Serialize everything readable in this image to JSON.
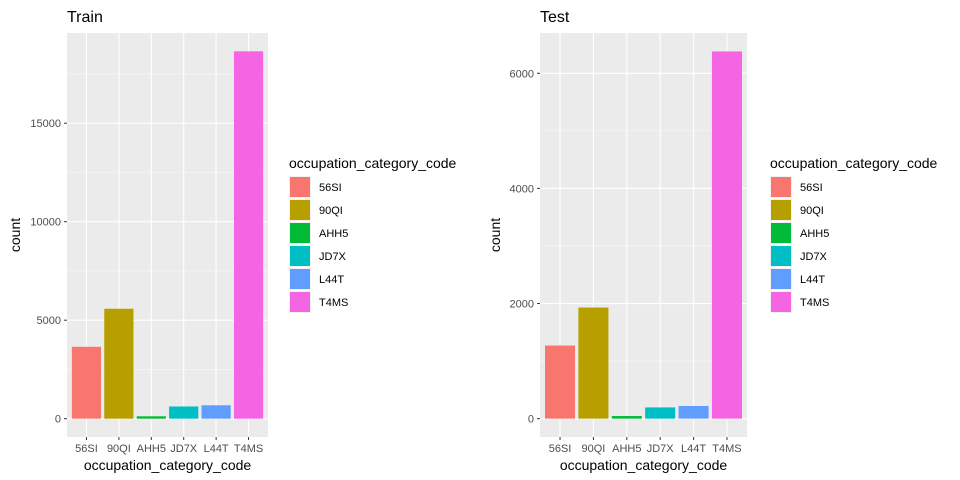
{
  "chart_data": [
    {
      "type": "bar",
      "title": "Train",
      "xlabel": "occupation_category_code",
      "ylabel": "count",
      "categories": [
        "56SI",
        "90QI",
        "AHH5",
        "JD7X",
        "L44T",
        "T4MS"
      ],
      "values": [
        3650,
        5580,
        120,
        620,
        680,
        18650
      ],
      "yticks": [
        0,
        5000,
        10000,
        15000
      ],
      "ylim": [
        -930,
        19580
      ],
      "colors": [
        "#F8766D",
        "#B79F00",
        "#00BA38",
        "#00BFC4",
        "#619CFF",
        "#F564E3"
      ],
      "legend": {
        "title": "occupation_category_code",
        "placement": "right",
        "entries": [
          "56SI",
          "90QI",
          "AHH5",
          "JD7X",
          "L44T",
          "T4MS"
        ]
      },
      "grid": true
    },
    {
      "type": "bar",
      "title": "Test",
      "xlabel": "occupation_category_code",
      "ylabel": "count",
      "categories": [
        "56SI",
        "90QI",
        "AHH5",
        "JD7X",
        "L44T",
        "T4MS"
      ],
      "values": [
        1270,
        1930,
        45,
        195,
        220,
        6380
      ],
      "yticks": [
        0,
        2000,
        4000,
        6000
      ],
      "ylim": [
        -319,
        6700
      ],
      "colors": [
        "#F8766D",
        "#B79F00",
        "#00BA38",
        "#00BFC4",
        "#619CFF",
        "#F564E3"
      ],
      "legend": {
        "title": "occupation_category_code",
        "placement": "right",
        "entries": [
          "56SI",
          "90QI",
          "AHH5",
          "JD7X",
          "L44T",
          "T4MS"
        ]
      },
      "grid": true
    }
  ]
}
